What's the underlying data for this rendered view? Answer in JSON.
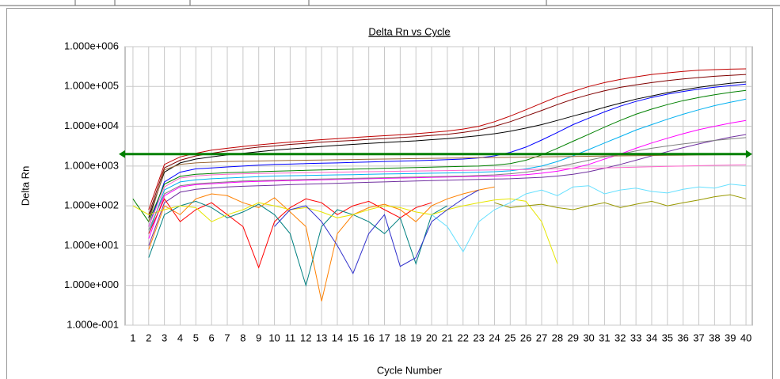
{
  "chart_data": {
    "type": "line",
    "title": "Delta Rn vs Cycle",
    "x_label": "Cycle Number",
    "y_label": "Delta Rn",
    "yscale": "log",
    "grid": true,
    "x": [
      1,
      2,
      3,
      4,
      5,
      6,
      7,
      8,
      9,
      10,
      11,
      12,
      13,
      14,
      15,
      16,
      17,
      18,
      19,
      20,
      21,
      22,
      23,
      24,
      25,
      26,
      27,
      28,
      29,
      30,
      31,
      32,
      33,
      34,
      35,
      36,
      37,
      38,
      39,
      40
    ],
    "xlim": [
      0.5,
      40.4
    ],
    "ylim": [
      0.1,
      1000000
    ],
    "yticks": [
      {
        "value": 1000000,
        "label": "1.000e+006"
      },
      {
        "value": 100000,
        "label": "1.000e+005"
      },
      {
        "value": 10000,
        "label": "1.000e+004"
      },
      {
        "value": 1000,
        "label": "1.000e+003"
      },
      {
        "value": 100,
        "label": "1.000e+002"
      },
      {
        "value": 10,
        "label": "1.000e+001"
      },
      {
        "value": 1,
        "label": "1.000e+000"
      },
      {
        "value": 0.1,
        "label": "1.000e-001"
      }
    ],
    "threshold": 2000,
    "threshold_color": "#008000",
    "series": [
      {
        "color": "#c00000",
        "values": [
          null,
          80,
          1100,
          1700,
          2100,
          2500,
          2800,
          3100,
          3400,
          3700,
          4000,
          4300,
          4600,
          4900,
          5200,
          5500,
          5800,
          6100,
          6500,
          7000,
          7600,
          8500,
          10000,
          13000,
          18000,
          26000,
          38000,
          55000,
          75000,
          100000,
          125000,
          150000,
          175000,
          200000,
          220000,
          240000,
          255000,
          265000,
          272000,
          278000
        ]
      },
      {
        "color": "#800000",
        "values": [
          null,
          60,
          900,
          1400,
          1800,
          2100,
          2400,
          2700,
          3000,
          3200,
          3500,
          3700,
          4000,
          4200,
          4400,
          4700,
          4900,
          5200,
          5500,
          5900,
          6300,
          7000,
          8000,
          10000,
          13000,
          18000,
          25000,
          35000,
          48000,
          62000,
          78000,
          95000,
          110000,
          125000,
          140000,
          155000,
          168000,
          180000,
          190000,
          200000
        ]
      },
      {
        "color": "#000000",
        "values": [
          null,
          50,
          700,
          1200,
          1500,
          1700,
          1900,
          2100,
          2300,
          2500,
          2700,
          2900,
          3100,
          3300,
          3500,
          3700,
          3900,
          4100,
          4300,
          4600,
          4900,
          5300,
          5800,
          6500,
          7500,
          9000,
          11000,
          14000,
          18000,
          23000,
          30000,
          38000,
          48000,
          58000,
          70000,
          82000,
          95000,
          108000,
          120000,
          130000
        ]
      },
      {
        "color": "#0000ff",
        "values": [
          null,
          30,
          400,
          700,
          850,
          900,
          950,
          1000,
          1050,
          1100,
          1120,
          1150,
          1180,
          1200,
          1230,
          1260,
          1300,
          1330,
          1360,
          1400,
          1450,
          1500,
          1600,
          1800,
          2200,
          3000,
          4500,
          7000,
          11000,
          16000,
          23000,
          32000,
          42000,
          53000,
          64000,
          75000,
          86000,
          96000,
          105000,
          115000
        ]
      },
      {
        "color": "#008000",
        "values": [
          150,
          40,
          350,
          550,
          620,
          650,
          680,
          700,
          720,
          740,
          760,
          780,
          800,
          820,
          840,
          860,
          880,
          900,
          920,
          940,
          960,
          980,
          1000,
          1050,
          1150,
          1400,
          1900,
          2800,
          4200,
          6300,
          9500,
          14000,
          20000,
          27000,
          35000,
          44000,
          53000,
          62000,
          71000,
          80000
        ]
      },
      {
        "color": "#00b0f0",
        "values": [
          null,
          20,
          250,
          400,
          450,
          480,
          500,
          520,
          540,
          560,
          570,
          580,
          590,
          600,
          610,
          620,
          630,
          640,
          650,
          660,
          670,
          680,
          700,
          720,
          760,
          850,
          1000,
          1300,
          1800,
          2600,
          3800,
          5500,
          8000,
          11000,
          15000,
          20000,
          26000,
          33000,
          40000,
          48000
        ]
      },
      {
        "color": "#ff00ff",
        "values": [
          null,
          15,
          180,
          300,
          340,
          360,
          380,
          400,
          410,
          420,
          430,
          440,
          450,
          460,
          470,
          480,
          490,
          500,
          510,
          520,
          530,
          540,
          550,
          560,
          580,
          610,
          660,
          740,
          880,
          1100,
          1500,
          2000,
          2800,
          3800,
          5000,
          6500,
          8200,
          10000,
          12000,
          14000
        ]
      },
      {
        "color": "#7030a0",
        "values": [
          null,
          10,
          120,
          220,
          260,
          280,
          300,
          310,
          320,
          330,
          340,
          350,
          360,
          370,
          380,
          390,
          400,
          410,
          420,
          430,
          440,
          450,
          460,
          470,
          480,
          500,
          520,
          560,
          620,
          720,
          880,
          1100,
          1400,
          1800,
          2300,
          2900,
          3600,
          4400,
          5300,
          6200
        ]
      },
      {
        "color": "#ff8000",
        "values": [
          null,
          8,
          100,
          60,
          150,
          200,
          180,
          120,
          90,
          160,
          70,
          30,
          0.4,
          20,
          60,
          90,
          110,
          80,
          40,
          100,
          150,
          200,
          250,
          300,
          null,
          null,
          null,
          null,
          null,
          null,
          null,
          null,
          null,
          null,
          null,
          null,
          null,
          null,
          null,
          null
        ]
      },
      {
        "color": "#ff0000",
        "values": [
          null,
          20,
          150,
          40,
          80,
          120,
          60,
          30,
          2.8,
          40,
          90,
          150,
          120,
          60,
          100,
          130,
          80,
          50,
          90,
          120,
          null,
          null,
          null,
          null,
          null,
          null,
          null,
          null,
          null,
          null,
          null,
          null,
          null,
          null,
          null,
          null,
          null,
          null,
          null,
          null
        ]
      },
      {
        "color": "#008080",
        "values": [
          null,
          5,
          60,
          100,
          130,
          90,
          50,
          70,
          110,
          60,
          20,
          1,
          30,
          80,
          60,
          40,
          20,
          50,
          3.5,
          60,
          100,
          null,
          null,
          null,
          null,
          null,
          null,
          null,
          null,
          null,
          null,
          null,
          null,
          null,
          null,
          null,
          null,
          null,
          null,
          null
        ]
      },
      {
        "color": "#e6e600",
        "values": [
          100,
          60,
          80,
          100,
          90,
          40,
          60,
          80,
          120,
          100,
          80,
          90,
          70,
          50,
          60,
          80,
          100,
          90,
          70,
          60,
          80,
          100,
          120,
          140,
          150,
          130,
          40,
          3.5,
          null,
          null,
          null,
          null,
          null,
          null,
          null,
          null,
          null,
          null,
          null,
          null
        ]
      },
      {
        "color": "#999900",
        "values": [
          null,
          null,
          null,
          null,
          null,
          null,
          null,
          null,
          null,
          null,
          null,
          null,
          null,
          null,
          null,
          null,
          null,
          null,
          null,
          null,
          null,
          null,
          null,
          120,
          90,
          100,
          110,
          90,
          80,
          100,
          120,
          90,
          110,
          130,
          100,
          120,
          140,
          170,
          190,
          150
        ]
      },
      {
        "color": "#66e0ff",
        "values": [
          null,
          null,
          null,
          null,
          null,
          null,
          null,
          null,
          null,
          null,
          null,
          null,
          null,
          null,
          null,
          null,
          null,
          null,
          null,
          60,
          30,
          7,
          40,
          80,
          120,
          200,
          250,
          180,
          300,
          320,
          200,
          250,
          280,
          230,
          210,
          260,
          300,
          280,
          350,
          320
        ]
      },
      {
        "color": "#ff66cc",
        "values": [
          null,
          30,
          300,
          500,
          560,
          600,
          620,
          640,
          650,
          660,
          670,
          680,
          690,
          700,
          710,
          720,
          730,
          740,
          750,
          760,
          770,
          780,
          790,
          800,
          810,
          820,
          830,
          850,
          870,
          880,
          900,
          920,
          940,
          960,
          980,
          1000,
          1020,
          1040,
          1060,
          1080
        ]
      },
      {
        "color": "#996633",
        "values": [
          null,
          40,
          800,
          1100,
          1200,
          1250,
          1300,
          1320,
          1340,
          1360,
          1380,
          1400,
          1420,
          1440,
          1460,
          1480,
          1500,
          1520,
          1540,
          1560,
          1580,
          1600,
          1620,
          1640,
          1660,
          1680,
          1700,
          1720,
          1740,
          1760,
          1780,
          1800,
          1820,
          1840,
          1860,
          1880,
          1900,
          1920,
          1940,
          1960
        ]
      },
      {
        "color": "#3333cc",
        "values": [
          null,
          null,
          null,
          null,
          null,
          null,
          null,
          null,
          null,
          30,
          80,
          100,
          40,
          10,
          2,
          20,
          60,
          3,
          5,
          40,
          80,
          150,
          250,
          null,
          null,
          null,
          null,
          null,
          null,
          null,
          null,
          null,
          null,
          null,
          null,
          null,
          null,
          null,
          null,
          null
        ]
      },
      {
        "color": "#808080",
        "values": [
          null,
          25,
          200,
          320,
          360,
          380,
          400,
          420,
          430,
          440,
          450,
          460,
          470,
          480,
          490,
          500,
          510,
          520,
          530,
          540,
          550,
          560,
          580,
          600,
          640,
          700,
          800,
          950,
          1150,
          1400,
          1700,
          2000,
          2400,
          2800,
          3200,
          3600,
          4000,
          4400,
          4800,
          5200
        ]
      }
    ]
  }
}
